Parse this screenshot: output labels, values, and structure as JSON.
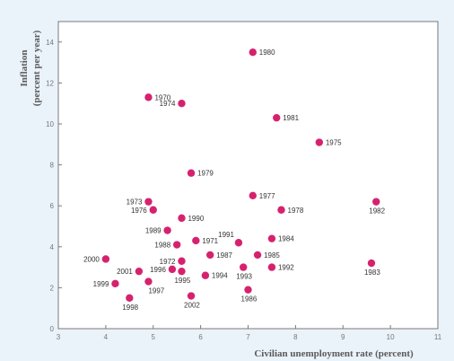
{
  "chart_data": {
    "type": "scatter",
    "xlabel": "Civilian unemployment rate (percent)",
    "ylabel_line1": "Inflation",
    "ylabel_line2": "(percent per year)",
    "xlim": [
      3,
      11
    ],
    "ylim": [
      0,
      15
    ],
    "xticks": [
      "3",
      "4",
      "5",
      "6",
      "7",
      "8",
      "9",
      "10",
      "11"
    ],
    "yticks": [
      "0",
      "2",
      "4",
      "6",
      "8",
      "10",
      "12",
      "14"
    ],
    "grid": false,
    "point_color": "#d6226e",
    "points": [
      {
        "label": "1980",
        "x": 7.1,
        "y": 13.5
      },
      {
        "label": "1974",
        "x": 5.6,
        "y": 11.0
      },
      {
        "label": "1970",
        "x": 4.9,
        "y": 11.3
      },
      {
        "label": "1981",
        "x": 7.6,
        "y": 10.3
      },
      {
        "label": "1975",
        "x": 8.5,
        "y": 9.1
      },
      {
        "label": "1979",
        "x": 5.8,
        "y": 7.6
      },
      {
        "label": "1977",
        "x": 7.1,
        "y": 6.5
      },
      {
        "label": "1973",
        "x": 4.9,
        "y": 6.2
      },
      {
        "label": "1976",
        "x": 5.0,
        "y": 5.8
      },
      {
        "label": "1978",
        "x": 7.7,
        "y": 5.8
      },
      {
        "label": "1982",
        "x": 9.7,
        "y": 6.2
      },
      {
        "label": "1990",
        "x": 5.6,
        "y": 5.4
      },
      {
        "label": "1989",
        "x": 5.3,
        "y": 4.8
      },
      {
        "label": "1991",
        "x": 6.8,
        "y": 4.2
      },
      {
        "label": "1984",
        "x": 7.5,
        "y": 4.4
      },
      {
        "label": "1988",
        "x": 5.5,
        "y": 4.1
      },
      {
        "label": "1971",
        "x": 5.9,
        "y": 4.3
      },
      {
        "label": "1987",
        "x": 6.2,
        "y": 3.6
      },
      {
        "label": "1985",
        "x": 7.2,
        "y": 3.6
      },
      {
        "label": "1972",
        "x": 5.6,
        "y": 3.3
      },
      {
        "label": "2000",
        "x": 4.0,
        "y": 3.4
      },
      {
        "label": "2001",
        "x": 4.7,
        "y": 2.8
      },
      {
        "label": "1983",
        "x": 9.6,
        "y": 3.2
      },
      {
        "label": "1992",
        "x": 7.5,
        "y": 3.0
      },
      {
        "label": "1993",
        "x": 6.9,
        "y": 3.0
      },
      {
        "label": "1996",
        "x": 5.4,
        "y": 2.9
      },
      {
        "label": "1995",
        "x": 5.6,
        "y": 2.8
      },
      {
        "label": "1994",
        "x": 6.1,
        "y": 2.6
      },
      {
        "label": "1999",
        "x": 4.2,
        "y": 2.2
      },
      {
        "label": "1997",
        "x": 4.9,
        "y": 2.3
      },
      {
        "label": "1986",
        "x": 7.0,
        "y": 1.9
      },
      {
        "label": "2002",
        "x": 5.8,
        "y": 1.6
      },
      {
        "label": "1998",
        "x": 4.5,
        "y": 1.5
      }
    ]
  }
}
